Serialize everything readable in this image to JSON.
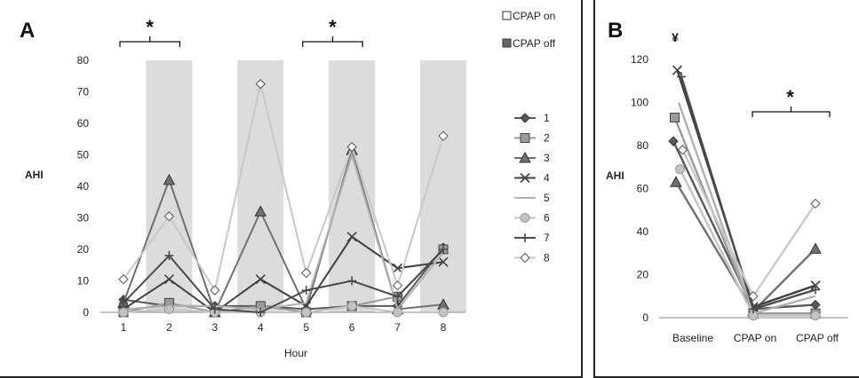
{
  "chart_data": [
    {
      "panel": "A",
      "type": "line",
      "ylabel": "AHI",
      "xlabel": "Hour",
      "x": [
        1,
        2,
        3,
        4,
        5,
        6,
        7,
        8
      ],
      "ylim": [
        0,
        80
      ],
      "yticks": [
        0,
        10,
        20,
        30,
        40,
        50,
        60,
        70,
        80
      ],
      "cpap_off_hours": [
        2,
        4,
        6,
        8
      ],
      "state_legend": [
        "CPAP on",
        "CPAP off"
      ],
      "significance_brackets": [
        {
          "from": 1,
          "to": 2,
          "label": "*"
        },
        {
          "from": 5,
          "to": 6,
          "label": "*"
        }
      ],
      "series": [
        {
          "name": "1",
          "values": [
            4,
            2,
            2,
            2,
            1,
            2,
            2,
            20.5
          ],
          "color": "#5a5a5a",
          "marker": "diamond"
        },
        {
          "name": "2",
          "values": [
            0,
            3,
            0,
            2,
            0,
            2,
            5,
            20
          ],
          "color": "#9a9a9a",
          "marker": "square"
        },
        {
          "name": "3",
          "values": [
            3,
            42,
            0,
            32,
            1,
            51.5,
            1,
            2.5
          ],
          "color": "#707070",
          "marker": "triangle"
        },
        {
          "name": "4",
          "values": [
            1,
            10.5,
            0,
            10.5,
            2,
            24,
            14,
            16
          ],
          "color": "#404040",
          "marker": "x"
        },
        {
          "name": "5",
          "values": [
            1,
            2,
            2,
            1,
            3,
            50,
            1,
            19
          ],
          "color": "#b0b0b0",
          "marker": "none"
        },
        {
          "name": "6",
          "values": [
            0,
            1,
            0,
            0,
            0,
            2,
            0,
            0
          ],
          "color": "#c4c4c4",
          "marker": "circle"
        },
        {
          "name": "7",
          "values": [
            3,
            18,
            1,
            0,
            7,
            10,
            5,
            20
          ],
          "color": "#4a4a4a",
          "marker": "plus"
        },
        {
          "name": "8",
          "values": [
            10.5,
            30.5,
            7,
            72.5,
            12.5,
            52.5,
            8.5,
            56
          ],
          "color": "#c8c8c8",
          "marker": "diamond-open"
        }
      ]
    },
    {
      "panel": "B",
      "type": "line",
      "ylabel": "AHI",
      "categories": [
        "Baseline",
        "CPAP on",
        "CPAP off"
      ],
      "ylim": [
        0,
        120
      ],
      "yticks": [
        0,
        20,
        40,
        60,
        80,
        100,
        120
      ],
      "annotations": [
        {
          "text": "¥",
          "at": "Baseline"
        },
        {
          "text": "*",
          "bracket": [
            "CPAP on",
            "CPAP off"
          ]
        }
      ],
      "series": [
        {
          "name": "1",
          "values": [
            82,
            4,
            6
          ],
          "color": "#5a5a5a",
          "marker": "diamond"
        },
        {
          "name": "2",
          "values": [
            93,
            2,
            2
          ],
          "color": "#9a9a9a",
          "marker": "square"
        },
        {
          "name": "3",
          "values": [
            63,
            3,
            32
          ],
          "color": "#707070",
          "marker": "triangle"
        },
        {
          "name": "4",
          "values": [
            115,
            5,
            15
          ],
          "color": "#404040",
          "marker": "x"
        },
        {
          "name": "5",
          "values": [
            100,
            2,
            10
          ],
          "color": "#b0b0b0",
          "marker": "none"
        },
        {
          "name": "6",
          "values": [
            69,
            1,
            1
          ],
          "color": "#c4c4c4",
          "marker": "circle"
        },
        {
          "name": "7",
          "values": [
            112,
            4,
            13
          ],
          "color": "#4a4a4a",
          "marker": "plus"
        },
        {
          "name": "8",
          "values": [
            78,
            10,
            53
          ],
          "color": "#c8c8c8",
          "marker": "diamond-open"
        }
      ]
    }
  ],
  "labels": {
    "panelA": "A",
    "panelB": "B",
    "sig_star": "*",
    "yen": "¥"
  }
}
